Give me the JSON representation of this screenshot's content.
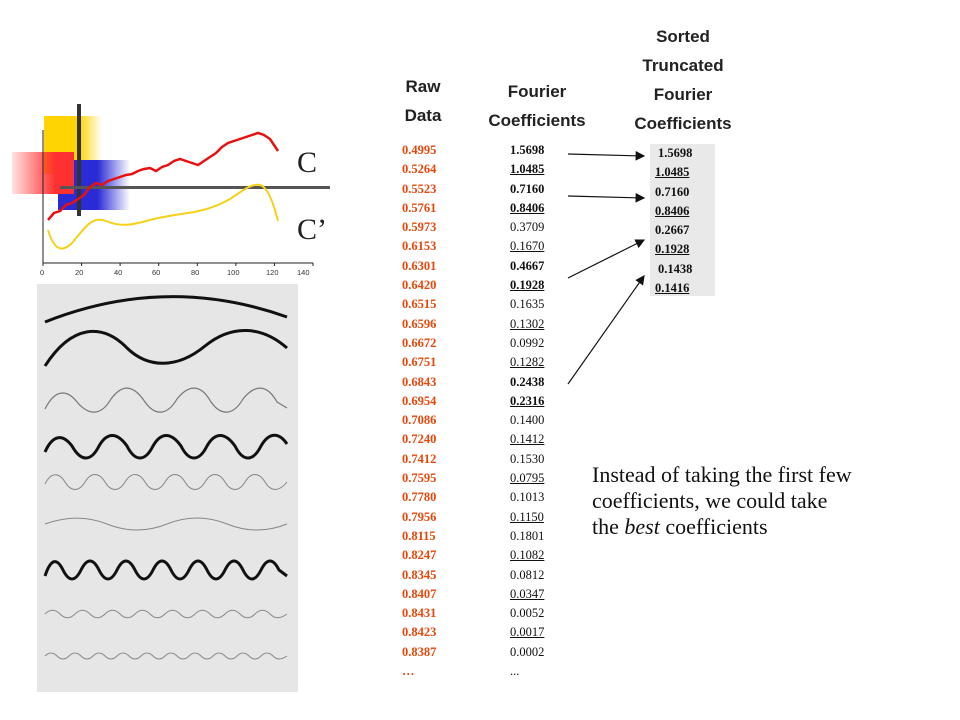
{
  "headers": {
    "raw": [
      "Raw",
      "Data"
    ],
    "fourier": [
      "Fourier",
      "Coefficients"
    ],
    "sorted": [
      "Sorted",
      "Truncated",
      "Fourier",
      "Coefficients"
    ]
  },
  "raw_data": [
    "0.4995",
    "0.5264",
    "0.5523",
    "0.5761",
    "0.5973",
    "0.6153",
    "0.6301",
    "0.6420",
    "0.6515",
    "0.6596",
    "0.6672",
    "0.6751",
    "0.6843",
    "0.6954",
    "0.7086",
    "0.7240",
    "0.7412",
    "0.7595",
    "0.7780",
    "0.7956",
    "0.8115",
    "0.8247",
    "0.8345",
    "0.8407",
    "0.8431",
    "0.8423",
    "0.8387",
    "…"
  ],
  "fourier_coefficients": [
    "1.5698",
    "1.0485",
    "0.7160",
    "0.8406",
    "0.3709",
    "0.1670",
    "0.4667",
    "0.1928",
    "0.1635",
    "0.1302",
    "0.0992",
    "0.1282",
    "0.2438",
    "0.2316",
    "0.1400",
    "0.1412",
    "0.1530",
    "0.0795",
    "0.1013",
    "0.1150",
    "0.1801",
    "0.1082",
    "0.0812",
    "0.0347",
    "0.0052",
    "0.0017",
    "0.0002",
    "..."
  ],
  "sorted_coefficients": [
    "1.5698",
    "1.0485",
    "0.7160",
    "0.8406",
    "0.2667",
    "0.1928",
    "0.1438",
    "0.1416"
  ],
  "curve_labels": {
    "c": "C",
    "c_prime": "C’"
  },
  "x_axis_ticks": [
    "0",
    "20",
    "40",
    "60",
    "80",
    "100",
    "120",
    "140"
  ],
  "note": {
    "line1": "Instead of taking the first few",
    "line2": "coefficients, we could take",
    "line3_pre": "the ",
    "line3_em": "best",
    "line3_post": " coefficients"
  },
  "colors": {
    "raw": "#e8460a",
    "curve_c": "#e81010",
    "curve_c_prime": "#f5d21a"
  }
}
